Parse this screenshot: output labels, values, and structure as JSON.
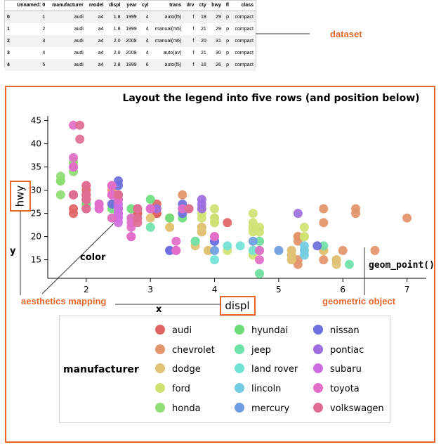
{
  "dataset_table": {
    "columns": [
      "Unnamed: 0",
      "manufacturer",
      "model",
      "displ",
      "year",
      "cyl",
      "trans",
      "drv",
      "cty",
      "hwy",
      "fl",
      "class"
    ],
    "index": [
      "0",
      "1",
      "2",
      "3",
      "4"
    ],
    "rows": [
      [
        "1",
        "audi",
        "a4",
        "1.8",
        "1999",
        "4",
        "auto(l5)",
        "f",
        "18",
        "29",
        "p",
        "compact"
      ],
      [
        "2",
        "audi",
        "a4",
        "1.8",
        "1999",
        "4",
        "manual(m5)",
        "f",
        "21",
        "29",
        "p",
        "compact"
      ],
      [
        "3",
        "audi",
        "a4",
        "2.0",
        "2008",
        "4",
        "manual(m6)",
        "f",
        "20",
        "31",
        "p",
        "compact"
      ],
      [
        "4",
        "audi",
        "a4",
        "2.0",
        "2008",
        "4",
        "auto(av)",
        "f",
        "21",
        "30",
        "p",
        "compact"
      ],
      [
        "5",
        "audi",
        "a4",
        "2.8",
        "1999",
        "6",
        "auto(l5)",
        "f",
        "16",
        "26",
        "p",
        "compact"
      ]
    ]
  },
  "annotations": {
    "dataset": "dataset",
    "aesthetics_mapping": "aesthetics mapping",
    "geometric_object": "geometric object",
    "geom_point": "geom_point()",
    "color": "color",
    "x": "x",
    "y": "y",
    "hwy_box": "hwy",
    "displ_box": "displ"
  },
  "colors": {
    "accent": "#e8672a",
    "audi": "#e06464",
    "chevrolet": "#e3946a",
    "dodge": "#e2c274",
    "ford": "#cfe274",
    "honda": "#8fdd74",
    "hyundai": "#6ddd7c",
    "jeep": "#6ee2a8",
    "land rover": "#72e2d6",
    "lincoln": "#72cce2",
    "mercury": "#6e9ce0",
    "nissan": "#6e6ee0",
    "pontiac": "#9c6ee0",
    "subaru": "#cf6ee2",
    "toyota": "#e26ec8",
    "volkswagen": "#e06e92"
  },
  "chart_data": {
    "type": "scatter",
    "title": "Layout the legend into five rows (and position below)",
    "xlabel": "displ",
    "ylabel": "hwy",
    "xlim": [
      1.4,
      7.3
    ],
    "ylim": [
      11,
      46
    ],
    "xticks": [
      2,
      3,
      4,
      5,
      6,
      7
    ],
    "yticks": [
      15,
      20,
      25,
      30,
      35,
      40,
      45
    ],
    "legend": {
      "title": "manufacturer",
      "placement": "bottom",
      "rows": 5,
      "entries": [
        "audi",
        "chevrolet",
        "dodge",
        "ford",
        "honda",
        "hyundai",
        "jeep",
        "land rover",
        "lincoln",
        "mercury",
        "nissan",
        "pontiac",
        "subaru",
        "toyota",
        "volkswagen"
      ]
    },
    "series": [
      {
        "name": "audi",
        "points": [
          [
            1.8,
            29
          ],
          [
            1.8,
            29
          ],
          [
            2.0,
            31
          ],
          [
            2.0,
            30
          ],
          [
            2.8,
            26
          ],
          [
            2.8,
            26
          ],
          [
            3.1,
            27
          ],
          [
            1.8,
            26
          ],
          [
            1.8,
            25
          ],
          [
            2.0,
            28
          ],
          [
            2.0,
            27
          ],
          [
            2.8,
            25
          ],
          [
            2.8,
            25
          ],
          [
            3.1,
            25
          ],
          [
            3.1,
            25
          ],
          [
            2.8,
            24
          ],
          [
            3.1,
            25
          ],
          [
            4.2,
            23
          ]
        ]
      },
      {
        "name": "chevrolet",
        "points": [
          [
            5.3,
            20
          ],
          [
            5.3,
            15
          ],
          [
            5.3,
            20
          ],
          [
            5.7,
            17
          ],
          [
            6.0,
            17
          ],
          [
            5.7,
            26
          ],
          [
            5.7,
            23
          ],
          [
            6.2,
            26
          ],
          [
            6.2,
            25
          ],
          [
            7.0,
            24
          ],
          [
            5.3,
            19
          ],
          [
            5.3,
            14
          ],
          [
            5.7,
            15
          ],
          [
            6.5,
            17
          ],
          [
            2.4,
            27
          ],
          [
            2.4,
            30
          ],
          [
            3.1,
            26
          ],
          [
            3.5,
            29
          ],
          [
            3.6,
            26
          ]
        ]
      },
      {
        "name": "dodge",
        "points": [
          [
            2.4,
            24
          ],
          [
            3.0,
            24
          ],
          [
            3.3,
            22
          ],
          [
            3.3,
            22
          ],
          [
            3.3,
            24
          ],
          [
            3.3,
            24
          ],
          [
            3.3,
            24
          ],
          [
            3.8,
            22
          ],
          [
            3.8,
            21
          ],
          [
            3.8,
            21
          ],
          [
            3.8,
            22
          ],
          [
            4.0,
            24
          ],
          [
            3.7,
            19
          ],
          [
            3.7,
            18
          ],
          [
            3.9,
            17
          ],
          [
            3.9,
            17
          ],
          [
            4.7,
            19
          ],
          [
            4.7,
            19
          ],
          [
            5.2,
            17
          ],
          [
            5.2,
            15
          ],
          [
            5.7,
            17
          ],
          [
            5.9,
            15
          ],
          [
            4.7,
            17
          ],
          [
            4.7,
            12
          ],
          [
            5.2,
            16
          ],
          [
            5.2,
            15
          ],
          [
            5.7,
            17
          ],
          [
            5.9,
            15
          ],
          [
            5.2,
            17
          ],
          [
            5.9,
            14
          ],
          [
            4.7,
            17
          ],
          [
            5.2,
            16
          ]
        ]
      },
      {
        "name": "ford",
        "points": [
          [
            3.8,
            26
          ],
          [
            3.8,
            25
          ],
          [
            4.0,
            26
          ],
          [
            4.0,
            24
          ],
          [
            4.6,
            21
          ],
          [
            5.4,
            22
          ],
          [
            4.0,
            23
          ],
          [
            4.0,
            23
          ],
          [
            4.6,
            22
          ],
          [
            5.4,
            20
          ],
          [
            4.6,
            17
          ],
          [
            5.4,
            17
          ],
          [
            4.0,
            20
          ],
          [
            4.2,
            17
          ],
          [
            4.6,
            16
          ],
          [
            5.4,
            17
          ],
          [
            3.8,
            24
          ],
          [
            4.6,
            25
          ],
          [
            5.4,
            20
          ],
          [
            4.6,
            23
          ],
          [
            4.7,
            22
          ],
          [
            4.7,
            21
          ],
          [
            2.0,
            29
          ],
          [
            2.0,
            26
          ]
        ]
      },
      {
        "name": "honda",
        "points": [
          [
            1.6,
            33
          ],
          [
            1.6,
            32
          ],
          [
            1.6,
            32
          ],
          [
            1.6,
            29
          ],
          [
            1.6,
            32
          ],
          [
            1.8,
            34
          ],
          [
            1.8,
            36
          ],
          [
            1.8,
            36
          ],
          [
            2.0,
            29
          ]
        ]
      },
      {
        "name": "hyundai",
        "points": [
          [
            2.0,
            26
          ],
          [
            2.0,
            27
          ],
          [
            2.0,
            26
          ],
          [
            2.4,
            26
          ],
          [
            2.4,
            31
          ],
          [
            2.5,
            28
          ],
          [
            3.3,
            24
          ],
          [
            2.0,
            26
          ],
          [
            2.7,
            24
          ],
          [
            2.7,
            26
          ],
          [
            3.0,
            28
          ],
          [
            3.5,
            24
          ]
        ]
      },
      {
        "name": "jeep",
        "points": [
          [
            3.0,
            22
          ],
          [
            3.7,
            19
          ],
          [
            4.0,
            20
          ],
          [
            4.7,
            17
          ],
          [
            4.7,
            12
          ],
          [
            4.7,
            19
          ],
          [
            5.7,
            18
          ],
          [
            6.1,
            14
          ]
        ]
      },
      {
        "name": "land rover",
        "points": [
          [
            4.0,
            15
          ],
          [
            4.2,
            18
          ],
          [
            4.4,
            18
          ],
          [
            4.6,
            17
          ]
        ]
      },
      {
        "name": "lincoln",
        "points": [
          [
            5.4,
            16
          ],
          [
            5.4,
            17
          ],
          [
            5.4,
            18
          ]
        ]
      },
      {
        "name": "mercury",
        "points": [
          [
            4.0,
            19
          ],
          [
            4.0,
            17
          ],
          [
            4.6,
            19
          ],
          [
            5.0,
            17
          ]
        ]
      },
      {
        "name": "nissan",
        "points": [
          [
            2.4,
            29
          ],
          [
            2.4,
            27
          ],
          [
            2.5,
            31
          ],
          [
            2.5,
            32
          ],
          [
            3.5,
            27
          ],
          [
            3.5,
            26
          ],
          [
            3.0,
            26
          ],
          [
            3.3,
            17
          ],
          [
            3.3,
            17
          ],
          [
            4.0,
            19
          ],
          [
            5.6,
            18
          ],
          [
            2.5,
            26
          ],
          [
            3.5,
            25
          ]
        ]
      },
      {
        "name": "pontiac",
        "points": [
          [
            3.1,
            26
          ],
          [
            3.8,
            28
          ],
          [
            3.8,
            27
          ],
          [
            3.8,
            26
          ],
          [
            5.3,
            25
          ]
        ]
      },
      {
        "name": "subaru",
        "points": [
          [
            2.5,
            25
          ],
          [
            2.5,
            24
          ],
          [
            2.5,
            24
          ],
          [
            2.5,
            27
          ],
          [
            2.5,
            23
          ],
          [
            2.5,
            26
          ],
          [
            2.2,
            26
          ],
          [
            2.2,
            27
          ],
          [
            2.5,
            25
          ],
          [
            2.5,
            26
          ],
          [
            2.5,
            24
          ],
          [
            2.5,
            25
          ],
          [
            2.5,
            28
          ],
          [
            2.5,
            26
          ]
        ]
      },
      {
        "name": "toyota",
        "points": [
          [
            2.7,
            20
          ],
          [
            2.7,
            20
          ],
          [
            3.4,
            19
          ],
          [
            3.4,
            17
          ],
          [
            4.0,
            20
          ],
          [
            4.7,
            17
          ],
          [
            4.7,
            15
          ],
          [
            2.2,
            26
          ],
          [
            2.2,
            27
          ],
          [
            2.4,
            31
          ],
          [
            2.4,
            31
          ],
          [
            3.0,
            26
          ],
          [
            3.0,
            26
          ],
          [
            3.5,
            26
          ],
          [
            1.8,
            35
          ],
          [
            1.8,
            37
          ],
          [
            1.8,
            35
          ],
          [
            1.8,
            44
          ],
          [
            2.4,
            29
          ],
          [
            2.4,
            29
          ],
          [
            2.7,
            24
          ],
          [
            2.7,
            22
          ],
          [
            3.4,
            17
          ],
          [
            4.0,
            20
          ],
          [
            2.7,
            23
          ],
          [
            2.4,
            24
          ],
          [
            2.5,
            28
          ]
        ]
      },
      {
        "name": "volkswagen",
        "points": [
          [
            2.0,
            31
          ],
          [
            2.0,
            29
          ],
          [
            2.8,
            23
          ],
          [
            2.8,
            24
          ],
          [
            1.9,
            44
          ],
          [
            1.9,
            41
          ],
          [
            2.0,
            29
          ],
          [
            2.0,
            26
          ],
          [
            2.5,
            29
          ],
          [
            2.5,
            29
          ],
          [
            2.0,
            28
          ],
          [
            2.0,
            29
          ],
          [
            1.8,
            29
          ],
          [
            1.8,
            29
          ],
          [
            2.0,
            28
          ],
          [
            2.0,
            29
          ],
          [
            2.8,
            26
          ],
          [
            2.8,
            26
          ],
          [
            3.6,
            26
          ],
          [
            2.0,
            28
          ],
          [
            2.0,
            26
          ]
        ]
      }
    ]
  }
}
